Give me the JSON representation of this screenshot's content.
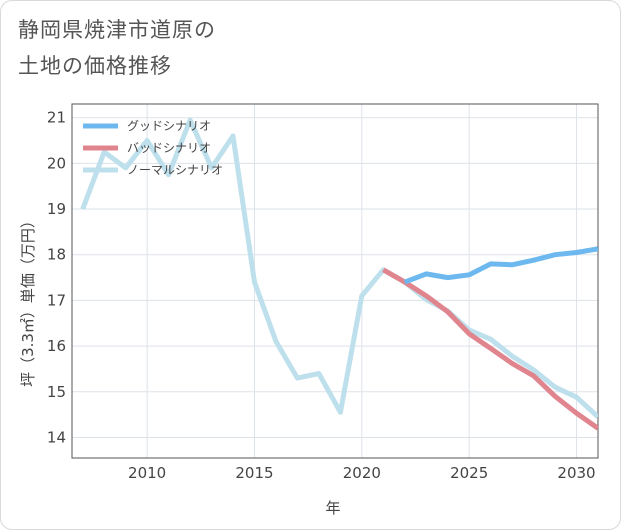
{
  "chart_data": {
    "type": "line",
    "title": "静岡県焼津市道原の\n土地の価格推移",
    "xlabel": "年",
    "ylabel": "坪（3.3㎡）単価（万円）",
    "xlim": [
      2006.5,
      2031
    ],
    "ylim": [
      13.55,
      21.3
    ],
    "xticks": [
      2010,
      2015,
      2020,
      2025,
      2030
    ],
    "yticks": [
      14,
      15,
      16,
      17,
      18,
      19,
      20,
      21
    ],
    "legend_position": "top-left",
    "series": [
      {
        "name": "グッドシナリオ",
        "color": "#6cb8ef",
        "x": [
          2022,
          2023,
          2024,
          2025,
          2026,
          2027,
          2028,
          2029,
          2030,
          2031
        ],
        "values": [
          17.4,
          17.58,
          17.5,
          17.56,
          17.8,
          17.78,
          17.88,
          18.0,
          18.05,
          18.13
        ]
      },
      {
        "name": "バッドシナリオ",
        "color": "#e0858e",
        "x": [
          2021,
          2022,
          2023,
          2024,
          2025,
          2026,
          2027,
          2028,
          2029,
          2030,
          2031
        ],
        "values": [
          17.67,
          17.4,
          17.1,
          16.75,
          16.27,
          15.95,
          15.62,
          15.35,
          14.9,
          14.53,
          14.2
        ]
      },
      {
        "name": "ノーマルシナリオ",
        "color": "#bde0ec",
        "x": [
          2007,
          2008,
          2009,
          2010,
          2011,
          2012,
          2013,
          2014,
          2015,
          2016,
          2017,
          2018,
          2019,
          2020,
          2021,
          2022,
          2023,
          2024,
          2025,
          2026,
          2027,
          2028,
          2029,
          2030,
          2031
        ],
        "values": [
          19.0,
          20.25,
          19.9,
          20.5,
          19.75,
          20.95,
          19.9,
          20.6,
          17.4,
          16.1,
          15.3,
          15.4,
          14.55,
          17.1,
          17.67,
          17.4,
          17.02,
          16.77,
          16.35,
          16.15,
          15.78,
          15.48,
          15.1,
          14.88,
          14.45
        ]
      }
    ]
  }
}
